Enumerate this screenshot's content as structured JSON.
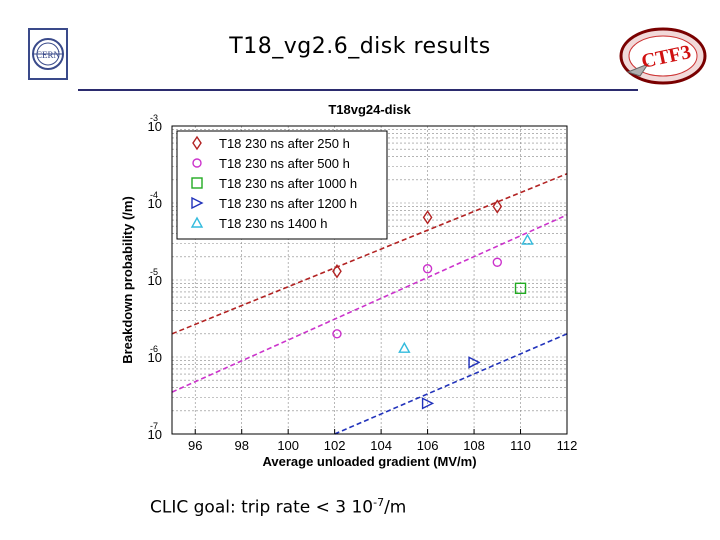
{
  "slide": {
    "title": "T18_vg2.6_disk results",
    "goal_prefix": "CLIC goal: trip rate < 3 10",
    "goal_exponent": "-7",
    "goal_suffix": "/m"
  },
  "logos": {
    "left": {
      "name": "cern-logo",
      "text": "CERN"
    },
    "right": {
      "name": "ctf3-logo",
      "text": "CTF3"
    }
  },
  "chart_data": {
    "type": "scatter",
    "title": "T18vg24-disk",
    "xlabel": "Average unloaded gradient (MV/m)",
    "ylabel": "Breakdown probability (/m)",
    "xlim": [
      95,
      112
    ],
    "ylim_log10": [
      -7,
      -3
    ],
    "y_scale": "log",
    "grid": true,
    "legend_placement": "top-left",
    "x_ticks": [
      "96",
      "98",
      "100",
      "102",
      "104",
      "106",
      "108",
      "110",
      "112"
    ],
    "x_tick_values": [
      96,
      98,
      100,
      102,
      104,
      106,
      108,
      110,
      112
    ],
    "y_ticks": [
      {
        "base": "10",
        "exp": "-7",
        "log": -7
      },
      {
        "base": "10",
        "exp": "-6",
        "log": -6
      },
      {
        "base": "10",
        "exp": "-5",
        "log": -5
      },
      {
        "base": "10",
        "exp": "-4",
        "log": -4
      },
      {
        "base": "10",
        "exp": "-3",
        "log": -3
      }
    ],
    "series": [
      {
        "name": "T18 230 ns after 250 h",
        "marker": "diamond",
        "color": "#b22222",
        "x": [
          102.1,
          106.0,
          109.0
        ],
        "y": [
          1.3e-05,
          6.5e-05,
          9e-05
        ],
        "fit": {
          "x": [
            95,
            112
          ],
          "y": [
            2e-06,
            0.00024
          ]
        }
      },
      {
        "name": "T18 230 ns after 500 h",
        "marker": "circle",
        "color": "#cc33cc",
        "x": [
          102.1,
          106.0,
          109.0
        ],
        "y": [
          2e-06,
          1.4e-05,
          1.7e-05
        ],
        "fit": {
          "x": [
            95,
            112
          ],
          "y": [
            3.5e-07,
            7e-05
          ]
        }
      },
      {
        "name": "T18 230 ns after 1000 h",
        "marker": "square",
        "color": "#22aa22",
        "x": [
          110.0
        ],
        "y": [
          7.8e-06
        ],
        "fit": null
      },
      {
        "name": "T18 230 ns after 1200 h",
        "marker": "triangle-right",
        "color": "#2233bb",
        "x": [
          106.0,
          108.0
        ],
        "y": [
          2.5e-07,
          8.5e-07
        ],
        "fit": {
          "x": [
            102,
            112
          ],
          "y": [
            1e-07,
            2e-06
          ]
        }
      },
      {
        "name": "T18 230 ns 1400 h",
        "marker": "triangle-up",
        "color": "#33bbdd",
        "x": [
          105.0,
          110.3
        ],
        "y": [
          1.3e-06,
          3.3e-05
        ],
        "fit": null
      }
    ]
  }
}
